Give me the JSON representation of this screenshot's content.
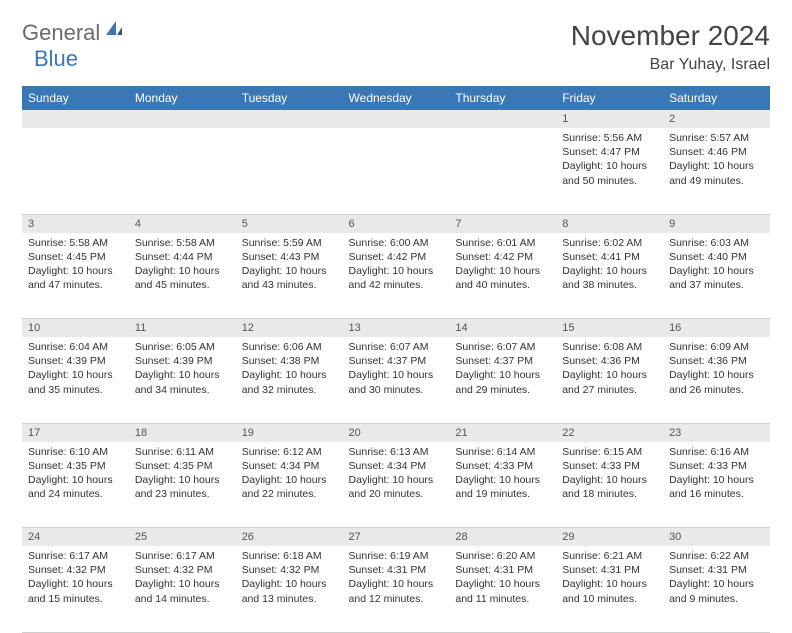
{
  "brand": {
    "part1": "General",
    "part2": "Blue"
  },
  "title": "November 2024",
  "location": "Bar Yuhay, Israel",
  "colors": {
    "header_bg": "#3a78b5",
    "header_text": "#ffffff",
    "daynum_bg": "#e9e9e9",
    "border": "#cfcfcf",
    "logo_gray": "#6b6b6b",
    "logo_blue": "#3a78b5"
  },
  "day_headers": [
    "Sunday",
    "Monday",
    "Tuesday",
    "Wednesday",
    "Thursday",
    "Friday",
    "Saturday"
  ],
  "weeks": [
    [
      null,
      null,
      null,
      null,
      null,
      {
        "n": "1",
        "sunrise": "5:56 AM",
        "sunset": "4:47 PM",
        "daylight": "10 hours and 50 minutes."
      },
      {
        "n": "2",
        "sunrise": "5:57 AM",
        "sunset": "4:46 PM",
        "daylight": "10 hours and 49 minutes."
      }
    ],
    [
      {
        "n": "3",
        "sunrise": "5:58 AM",
        "sunset": "4:45 PM",
        "daylight": "10 hours and 47 minutes."
      },
      {
        "n": "4",
        "sunrise": "5:58 AM",
        "sunset": "4:44 PM",
        "daylight": "10 hours and 45 minutes."
      },
      {
        "n": "5",
        "sunrise": "5:59 AM",
        "sunset": "4:43 PM",
        "daylight": "10 hours and 43 minutes."
      },
      {
        "n": "6",
        "sunrise": "6:00 AM",
        "sunset": "4:42 PM",
        "daylight": "10 hours and 42 minutes."
      },
      {
        "n": "7",
        "sunrise": "6:01 AM",
        "sunset": "4:42 PM",
        "daylight": "10 hours and 40 minutes."
      },
      {
        "n": "8",
        "sunrise": "6:02 AM",
        "sunset": "4:41 PM",
        "daylight": "10 hours and 38 minutes."
      },
      {
        "n": "9",
        "sunrise": "6:03 AM",
        "sunset": "4:40 PM",
        "daylight": "10 hours and 37 minutes."
      }
    ],
    [
      {
        "n": "10",
        "sunrise": "6:04 AM",
        "sunset": "4:39 PM",
        "daylight": "10 hours and 35 minutes."
      },
      {
        "n": "11",
        "sunrise": "6:05 AM",
        "sunset": "4:39 PM",
        "daylight": "10 hours and 34 minutes."
      },
      {
        "n": "12",
        "sunrise": "6:06 AM",
        "sunset": "4:38 PM",
        "daylight": "10 hours and 32 minutes."
      },
      {
        "n": "13",
        "sunrise": "6:07 AM",
        "sunset": "4:37 PM",
        "daylight": "10 hours and 30 minutes."
      },
      {
        "n": "14",
        "sunrise": "6:07 AM",
        "sunset": "4:37 PM",
        "daylight": "10 hours and 29 minutes."
      },
      {
        "n": "15",
        "sunrise": "6:08 AM",
        "sunset": "4:36 PM",
        "daylight": "10 hours and 27 minutes."
      },
      {
        "n": "16",
        "sunrise": "6:09 AM",
        "sunset": "4:36 PM",
        "daylight": "10 hours and 26 minutes."
      }
    ],
    [
      {
        "n": "17",
        "sunrise": "6:10 AM",
        "sunset": "4:35 PM",
        "daylight": "10 hours and 24 minutes."
      },
      {
        "n": "18",
        "sunrise": "6:11 AM",
        "sunset": "4:35 PM",
        "daylight": "10 hours and 23 minutes."
      },
      {
        "n": "19",
        "sunrise": "6:12 AM",
        "sunset": "4:34 PM",
        "daylight": "10 hours and 22 minutes."
      },
      {
        "n": "20",
        "sunrise": "6:13 AM",
        "sunset": "4:34 PM",
        "daylight": "10 hours and 20 minutes."
      },
      {
        "n": "21",
        "sunrise": "6:14 AM",
        "sunset": "4:33 PM",
        "daylight": "10 hours and 19 minutes."
      },
      {
        "n": "22",
        "sunrise": "6:15 AM",
        "sunset": "4:33 PM",
        "daylight": "10 hours and 18 minutes."
      },
      {
        "n": "23",
        "sunrise": "6:16 AM",
        "sunset": "4:33 PM",
        "daylight": "10 hours and 16 minutes."
      }
    ],
    [
      {
        "n": "24",
        "sunrise": "6:17 AM",
        "sunset": "4:32 PM",
        "daylight": "10 hours and 15 minutes."
      },
      {
        "n": "25",
        "sunrise": "6:17 AM",
        "sunset": "4:32 PM",
        "daylight": "10 hours and 14 minutes."
      },
      {
        "n": "26",
        "sunrise": "6:18 AM",
        "sunset": "4:32 PM",
        "daylight": "10 hours and 13 minutes."
      },
      {
        "n": "27",
        "sunrise": "6:19 AM",
        "sunset": "4:31 PM",
        "daylight": "10 hours and 12 minutes."
      },
      {
        "n": "28",
        "sunrise": "6:20 AM",
        "sunset": "4:31 PM",
        "daylight": "10 hours and 11 minutes."
      },
      {
        "n": "29",
        "sunrise": "6:21 AM",
        "sunset": "4:31 PM",
        "daylight": "10 hours and 10 minutes."
      },
      {
        "n": "30",
        "sunrise": "6:22 AM",
        "sunset": "4:31 PM",
        "daylight": "10 hours and 9 minutes."
      }
    ]
  ],
  "labels": {
    "sunrise": "Sunrise: ",
    "sunset": "Sunset: ",
    "daylight": "Daylight: "
  }
}
